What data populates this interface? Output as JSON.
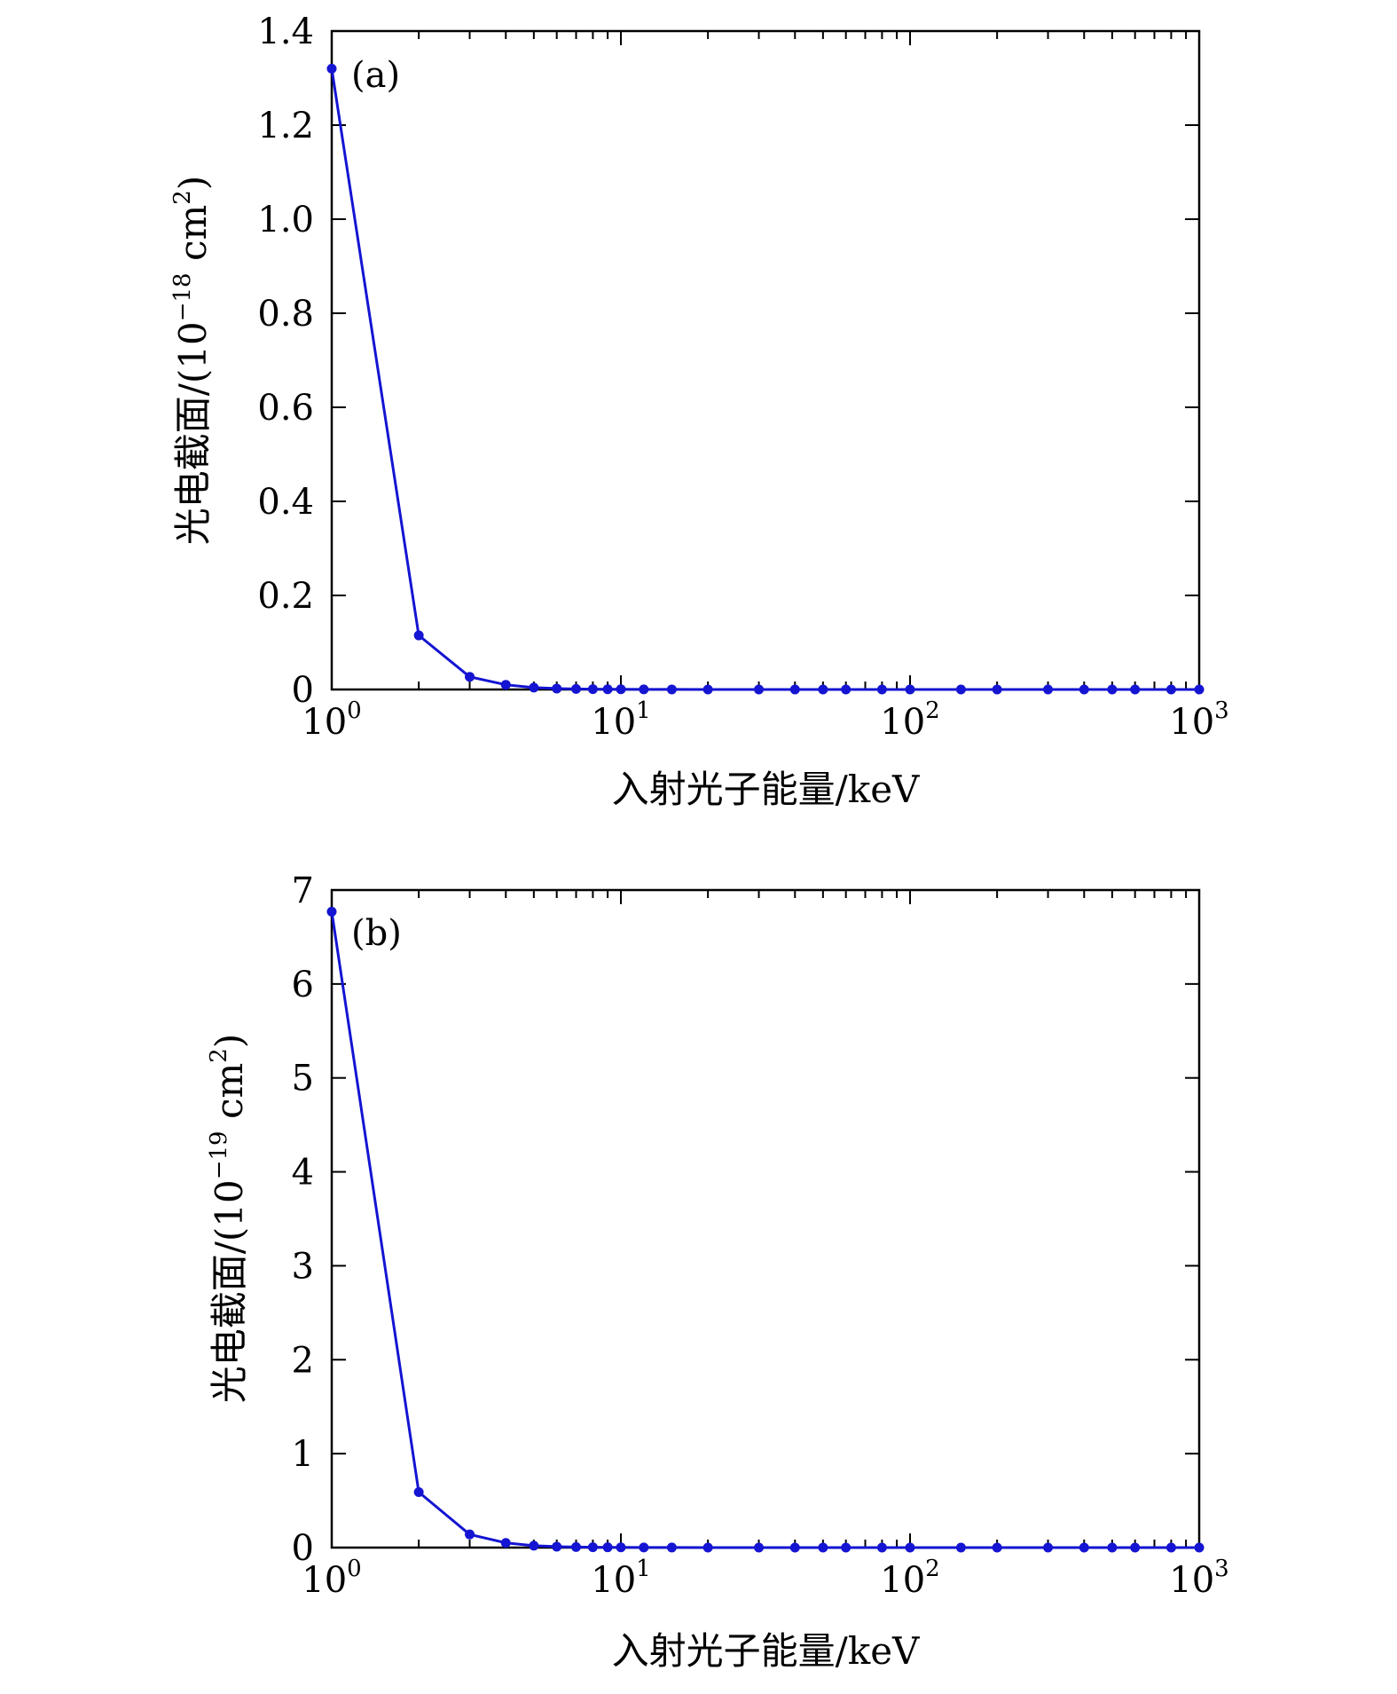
{
  "chart_data": [
    {
      "type": "line",
      "panel_label": "(a)",
      "xlabel": "入射光子能量/keV",
      "ylabel_main": "光电截面/(10",
      "ylabel_exp": "−18",
      "ylabel_unit": " cm",
      "ylabel_unit_exp": "2",
      "ylabel_close": ")",
      "xscale": "log",
      "xlim": [
        1,
        1000
      ],
      "ylim": [
        0,
        1.4
      ],
      "xticks": [
        {
          "base": "10",
          "exp": "0"
        },
        {
          "base": "10",
          "exp": "1"
        },
        {
          "base": "10",
          "exp": "2"
        },
        {
          "base": "10",
          "exp": "3"
        }
      ],
      "yticks": [
        "0",
        "0.2",
        "0.4",
        "0.6",
        "0.8",
        "1.0",
        "1.2",
        "1.4"
      ],
      "color": "#1414d2",
      "x": [
        1,
        2,
        3,
        4,
        5,
        6,
        7,
        8,
        9,
        10,
        12,
        15,
        20,
        30,
        40,
        50,
        60,
        80,
        100,
        150,
        200,
        300,
        400,
        500,
        600,
        800,
        1000
      ],
      "y": [
        1.32,
        0.115,
        0.027,
        0.01,
        0.004,
        0.002,
        0.0012,
        0.0008,
        0.0005,
        0.0004,
        0.0002,
        0.0001,
        5e-05,
        2e-05,
        1e-05,
        5e-06,
        3e-06,
        2e-06,
        1e-06,
        5e-07,
        3e-07,
        2e-07,
        1e-07,
        1e-07,
        1e-07,
        1e-07,
        1e-07
      ]
    },
    {
      "type": "line",
      "panel_label": "(b)",
      "xlabel": "入射光子能量/keV",
      "ylabel_main": "光电截面/(10",
      "ylabel_exp": "−19",
      "ylabel_unit": " cm",
      "ylabel_unit_exp": "2",
      "ylabel_close": ")",
      "xscale": "log",
      "xlim": [
        1,
        1000
      ],
      "ylim": [
        0,
        7
      ],
      "xticks": [
        {
          "base": "10",
          "exp": "0"
        },
        {
          "base": "10",
          "exp": "1"
        },
        {
          "base": "10",
          "exp": "2"
        },
        {
          "base": "10",
          "exp": "3"
        }
      ],
      "yticks": [
        "0",
        "1",
        "2",
        "3",
        "4",
        "5",
        "6",
        "7"
      ],
      "color": "#1414d2",
      "x": [
        1,
        2,
        3,
        4,
        5,
        6,
        7,
        8,
        9,
        10,
        12,
        15,
        20,
        30,
        40,
        50,
        60,
        80,
        100,
        150,
        200,
        300,
        400,
        500,
        600,
        800,
        1000
      ],
      "y": [
        6.77,
        0.59,
        0.14,
        0.05,
        0.02,
        0.01,
        0.006,
        0.004,
        0.003,
        0.002,
        0.001,
        0.0006,
        0.0003,
        0.0001,
        5e-05,
        3e-05,
        2e-05,
        1e-05,
        5e-06,
        2e-06,
        1e-06,
        5e-07,
        3e-07,
        2e-07,
        1e-07,
        1e-07,
        1e-07
      ]
    }
  ]
}
